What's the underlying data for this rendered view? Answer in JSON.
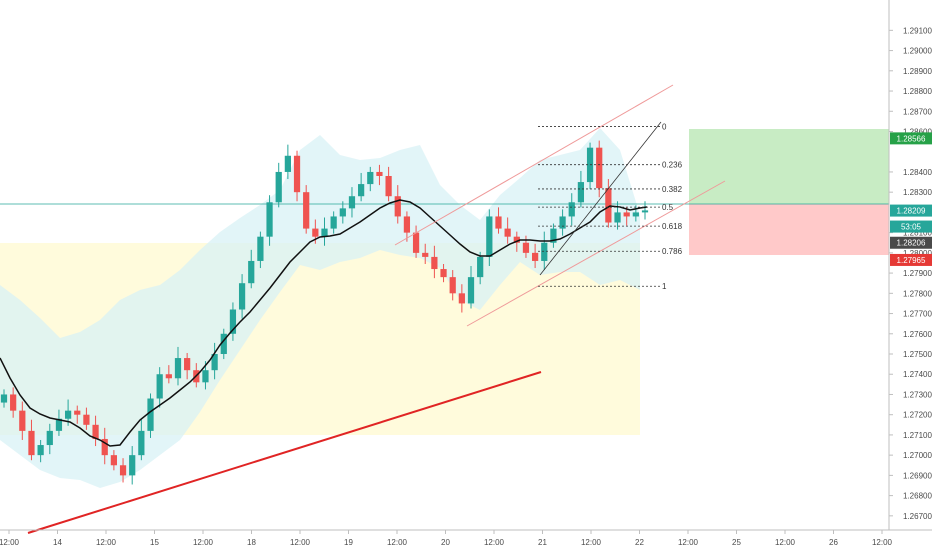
{
  "chart_data": {
    "type": "candlestick",
    "x_ticks": [
      "12:00",
      "14",
      "12:00",
      "15",
      "12:00",
      "18",
      "12:00",
      "19",
      "12:00",
      "20",
      "12:00",
      "21",
      "12:00",
      "22",
      "12:00",
      "25",
      "12:00",
      "26",
      "12:00"
    ],
    "y_ticks": [
      "1.29100",
      "1.29000",
      "1.28900",
      "1.28800",
      "1.28700",
      "1.28600",
      "1.28400",
      "1.28300",
      "1.28100",
      "1.28000",
      "1.27900",
      "1.27800",
      "1.27700",
      "1.27600",
      "1.27500",
      "1.27400",
      "1.27300",
      "1.27200",
      "1.27100",
      "1.27000",
      "1.26900",
      "1.26800",
      "1.26700"
    ],
    "y_tick_values": [
      1.291,
      1.29,
      1.289,
      1.288,
      1.287,
      1.286,
      1.284,
      1.283,
      1.281,
      1.28,
      1.279,
      1.278,
      1.277,
      1.276,
      1.275,
      1.274,
      1.273,
      1.272,
      1.271,
      1.27,
      1.269,
      1.268,
      1.267
    ],
    "ylim": [
      1.2663,
      1.2925
    ],
    "grid": false,
    "closes": [
      1.273,
      1.2722,
      1.2712,
      1.27,
      1.2705,
      1.2712,
      1.2718,
      1.2722,
      1.272,
      1.2715,
      1.2708,
      1.27,
      1.2695,
      1.269,
      1.27,
      1.2712,
      1.2728,
      1.274,
      1.2738,
      1.2748,
      1.2742,
      1.2736,
      1.2742,
      1.275,
      1.276,
      1.2772,
      1.2785,
      1.2796,
      1.2808,
      1.2825,
      1.284,
      1.2848,
      1.283,
      1.2812,
      1.2808,
      1.2812,
      1.2818,
      1.2822,
      1.2828,
      1.2834,
      1.284,
      1.2838,
      1.2828,
      1.2818,
      1.281,
      1.28,
      1.2798,
      1.2792,
      1.2788,
      1.278,
      1.2775,
      1.2788,
      1.2798,
      1.2818,
      1.2812,
      1.2808,
      1.2805,
      1.28,
      1.2796,
      1.2805,
      1.2812,
      1.2818,
      1.2825,
      1.2835,
      1.2852,
      1.2832,
      1.2815,
      1.282,
      1.2818,
      1.282,
      1.2821
    ],
    "fib_levels": [
      {
        "label": "0",
        "value": 1.28625
      },
      {
        "label": "0.236",
        "value": 1.28436
      },
      {
        "label": "0.382",
        "value": 1.28316
      },
      {
        "label": "0.5",
        "value": 1.28226
      },
      {
        "label": "0.618",
        "value": 1.28132
      },
      {
        "label": "0.786",
        "value": 1.28008
      },
      {
        "label": "1",
        "value": 1.27835
      }
    ],
    "price_badges": [
      {
        "label": "1.28566",
        "value": 1.28566,
        "color": "#26a148"
      },
      {
        "label": "1.28209",
        "value": 1.28209,
        "color": "#26a69a"
      },
      {
        "label": "53:05",
        "value": 1.2813,
        "color": "#26a69a"
      },
      {
        "label": "1.28206",
        "value": 1.2805,
        "color": "#4a4a4a"
      },
      {
        "label": "1.27965",
        "value": 1.27965,
        "color": "#e53935"
      }
    ],
    "position": {
      "entry": 1.28209,
      "target": 1.28566,
      "stop": 1.27965
    }
  },
  "colors": {
    "bull": "#26a69a",
    "bear": "#ef5350",
    "ma": "#111111",
    "trendline": "#e02424",
    "channel": "#ef9a9a",
    "profit_zone": "#c8ecc4",
    "loss_zone": "#ffc9c9",
    "band_fill": "#d8f1f5",
    "range_box": "#fffbdc"
  }
}
